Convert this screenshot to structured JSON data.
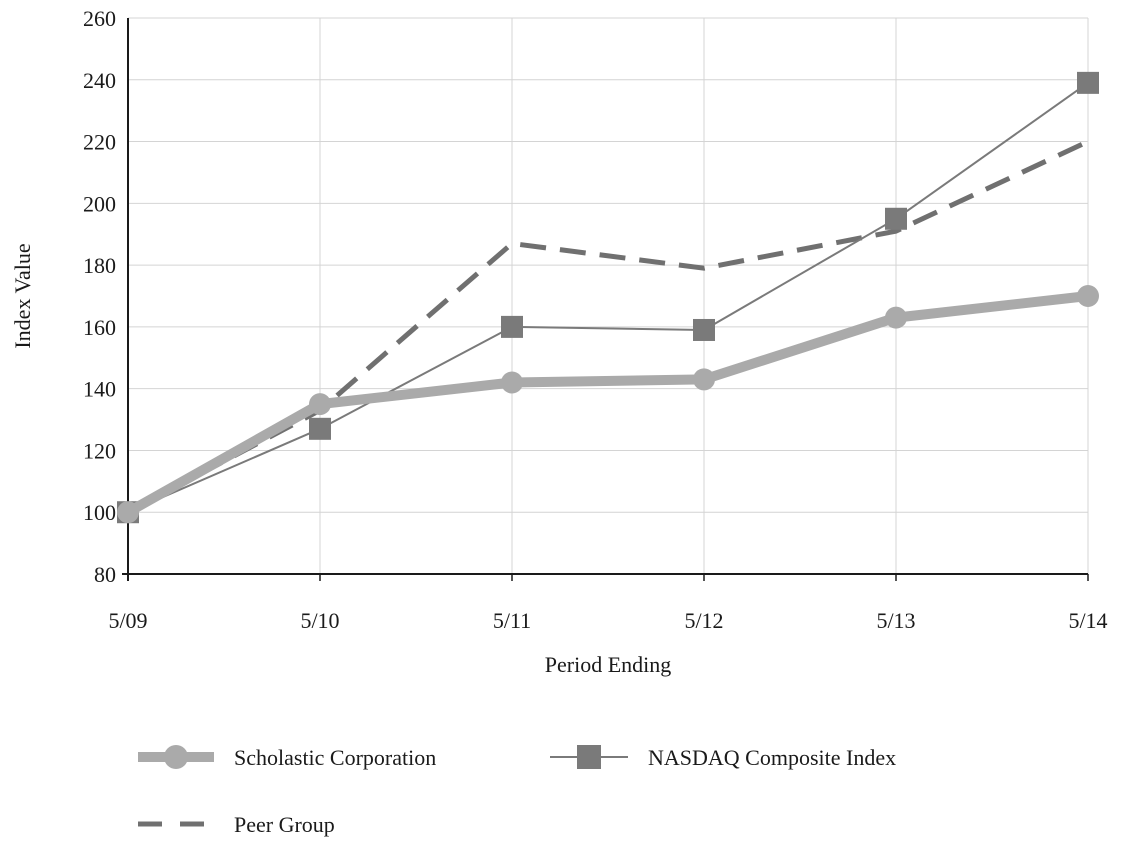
{
  "chart_data": {
    "type": "line",
    "title": "",
    "xlabel": "Period Ending",
    "ylabel": "Index Value",
    "categories": [
      "5/09",
      "5/10",
      "5/11",
      "5/12",
      "5/13",
      "5/14"
    ],
    "ylim": [
      80,
      260
    ],
    "yticks": [
      80,
      100,
      120,
      140,
      160,
      180,
      200,
      220,
      240,
      260
    ],
    "grid": true,
    "legend_position": "bottom",
    "series": [
      {
        "name": "Scholastic Corporation",
        "values": [
          100,
          135,
          142,
          143,
          163,
          170
        ],
        "color": "#aaaaaa",
        "line_style": "solid-thick",
        "marker": "circle"
      },
      {
        "name": "NASDAQ Composite Index",
        "values": [
          100,
          127,
          160,
          159,
          195,
          239
        ],
        "color": "#7a7a7a",
        "line_style": "solid-thin",
        "marker": "square"
      },
      {
        "name": "Peer Group",
        "values": [
          100,
          133,
          187,
          179,
          191,
          220
        ],
        "color": "#707070",
        "line_style": "dashed",
        "marker": "none"
      }
    ]
  }
}
